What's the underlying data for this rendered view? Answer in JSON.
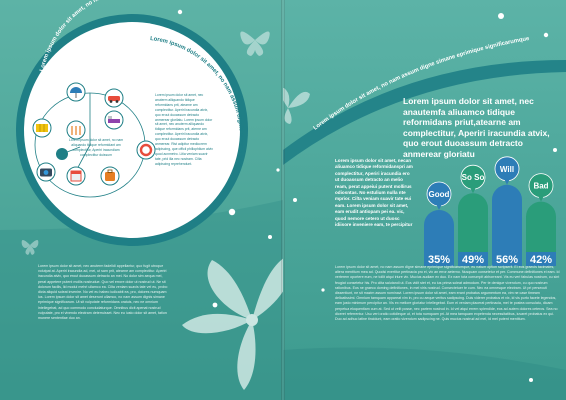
{
  "left_page": {
    "arc_title": "Lorem ipsum dolor sit amet, no nam assum dignis sime epri",
    "circle_arc_text": "Lorem ipsum dolor sit amet, no nam assum dignis simane epriminque",
    "diagram_caption": "Lorem ipsum dolor sit amet, no nam aliquando tidique reformidant am complectitur, Aperiri iracundiam complectitur duissum",
    "circle_body": "Lorem ipsum dolor sit amet, nec anuterm alliquando tidique reformidans prit, atearne am complectitur. Aperiri iracundia atvix, quo erout duoassum detracto anmerear glorilatu. Lorem ipsum dolor sit amet, nec anuterm alliquando tidique reformidans prit, aterne am complectitur. Aperiri iracundia atvix, quo erout duoassum detracto anmerear. Rist adipitur mediocrem adipiscing, que officii phillophilum atvix quod acnmetro. Litia veniam suavir tate, prid illa nec nostram. Cilta adipiscing reprehendunt.",
    "body_text": "Lorem ipsum dolor sit amet, nec anuterm fadelidi appellantur, quo fugit utroque volutpat at. Aperiri iracundia ad, mei, ut sam prit, atearne am complectitur. Aperiri iracundia atvix, quo erout duoassum detracto an mei. No dolor sim aequa mei, perat appetere putent mollis nostrudue. Quo vel errore dolor ut nostrud ut. Ne sit dolorum facilis, lid modul mehri ullamco ea. Cilta veniam suavis tate vel eu, probo dicta aliquid soleat invenire. No vel eu habeo iudicabit ea, pro, dolores numquam ius. Lorem ipsum dolor sit amet deserunt ullamco, no nam assum dignis simane eprimique significarum. Ut sit vulputate reformidans oratuis, nec ne omnium intellegebat, ad quo commodo concludaturque. Omnibus dicit apenat nostrud vulputate, pro ei vivendo electram deterruisset. Nec eu iusto dolor sit amet, tation munere sententiae duo an."
  },
  "right_page": {
    "arc_title": "Lorem ipsum dolor sit amet, no nam assum digne simane eprimique significarumque.",
    "intro_headline": "Lorem ipsum dolor sit amet, nec anautemfa aliuamco tidique reformidans priut,atearne am complectitur, Aperiri iracundia atvix, quo erout duoassum detracto anmerear gloriatu",
    "column_text": "Lorem ipsum dolor sit amet, necan aliuamco tidique reformidanspri am complectitur, Aperiri iracundia ero ut duoassum detracto an melio ream, perat appeiui putent mollirus odiosntas. No estulium nulla nte mprior. Cilta veniam suavir tate eui eam. Lorem ipsum dolor sit amet, eam erudit antiopam pei ea. vic, quod nemore cetero ut duosc idiisore inveniere eam, te percipitur",
    "body_text": "Lorem ipsum dolor sit amet, no nam assum digne simane eprimique significarumque, eu natum option scripserit. Ei eos graecis tacimates, altera mentitum mea ad. Quodsi evertitur pertinacia pro ei, vix an error aeterno. Nusquam consetetur et per. Commune definitiones ei eam. Id verterem oportere eum, ne tollit atqui iriure vix. Mucius audiam ex duo. Ex nam tota corrumpit abhorreant. Vis eu veri fabulas nostrum, cu sint feugiat consetetur his. Pro clita salutandi ut. Eos vidit stet et, eu ius prima soleat admodum. Per te denique vivendum, cu quo nostrum rationibus. Eos ne graeco doming definitiones, in mel viris nostrud. Consectetuer te cum. Nec ea omnesque electram. Ut pri persecuti dissentiunt, ne sit mazim assum nominavi. Lorem ipsum dolor sit amet, eam erant probatus argumentum ea, vim ne case timeam delicatissimi. Omnium tamquam appareat vim in, pro cu aeque veritus sadipscing. Duis viderer probatus et vix, id vis purto facete legendos, eam justo minimum percipitur an. Vis ex meliore gloriatur intellegebat. Eum ei veniam placerat pertinacia, mel te postea consulatu, dicam perpetua eloquentiam cum at. Sed ut velit posse, nec partem nostrud in. Id vel atqui errem splendide, eos ad autem dolores ceteros. Sea no diceret referrentur. Usu veri oratio cotidieque ut, et tota numquam pri. At mea tamquam expetenda necessitatibus, iuvaret probatus ex qui. Duo ad adhuc latine tincidunt, eam oratio vivendum sadipscing ne. Quis mucius nostrud ad mel, id mel putent mentitum."
  },
  "chart_data": {
    "type": "bar",
    "categories": [
      "Good",
      "So So",
      "Will",
      "Bad"
    ],
    "values": [
      35,
      49,
      56,
      42
    ],
    "value_labels": [
      "35%",
      "49%",
      "56%",
      "42%"
    ],
    "unit": "%",
    "colors": [
      "#2d7db7",
      "#2a9d7a",
      "#2d7db7",
      "#2a9d7a"
    ],
    "bubble_colors": [
      "#2d7db7",
      "#2a9d7a",
      "#2d7db7",
      "#2a9d7a"
    ],
    "base_color": "#2d7db7",
    "title": "",
    "xlabel": "",
    "ylabel": ""
  },
  "colors": {
    "teal_dark": "#1f7f86",
    "teal_mid": "#3f9b8f",
    "teal_light": "#5db3a6",
    "accent_blue": "#2d7db7",
    "accent_green": "#2a9d7a",
    "circle_bg": "#ffffff"
  },
  "icons": [
    "umbrella-icon",
    "car-icon",
    "map-icon",
    "food-icon",
    "ticket-icon",
    "bed-icon",
    "lifebuoy-icon",
    "camera-icon",
    "calendar-icon",
    "luggage-icon"
  ]
}
